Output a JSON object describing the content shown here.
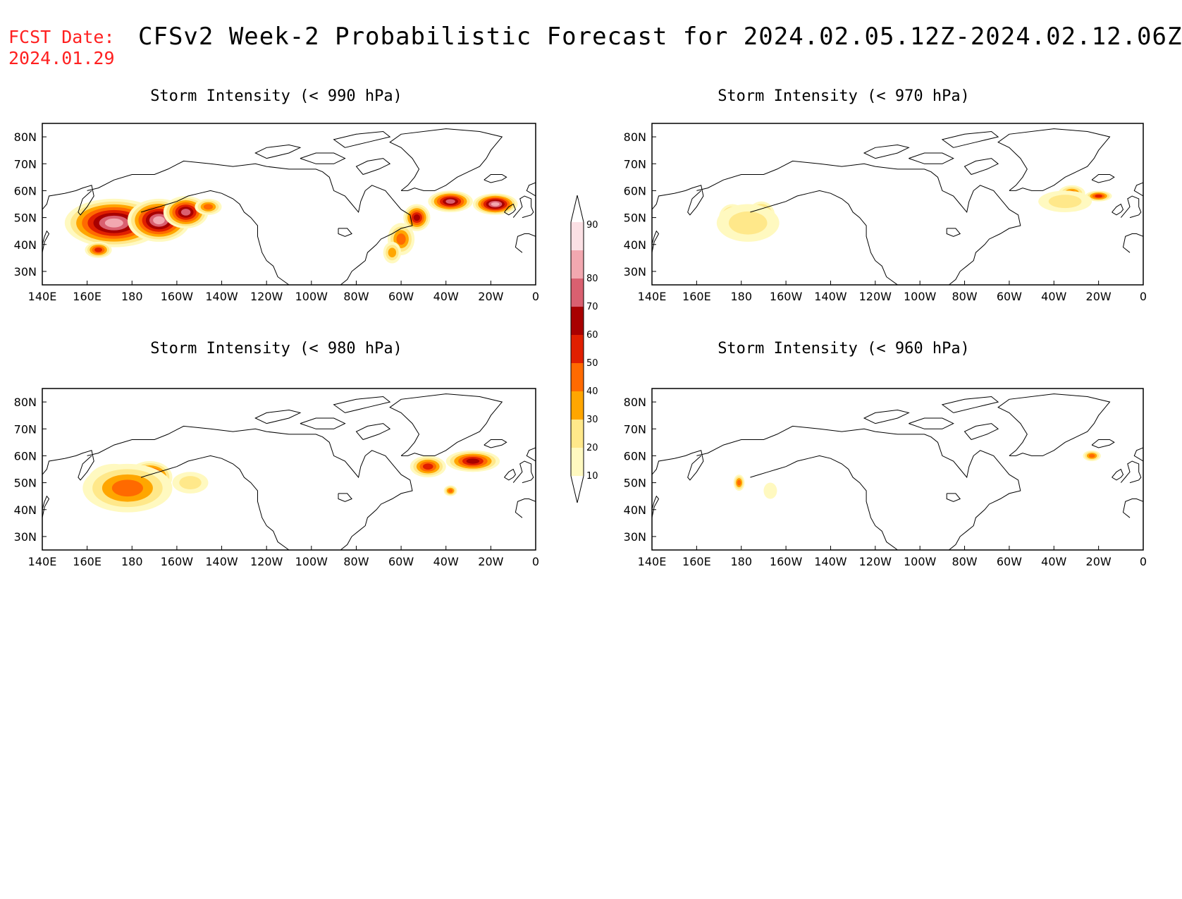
{
  "header": {
    "fcst_label": "FCST Date:",
    "fcst_date": "2024.01.29",
    "title": "CFSv2 Week-2 Probabilistic Forecast for 2024.02.05.12Z-2024.02.12.06Z"
  },
  "colors": {
    "fcst_text": "#ff2020",
    "scale": [
      "#fff9c0",
      "#ffe88a",
      "#ffa600",
      "#ff6a00",
      "#e01f00",
      "#a80000",
      "#d96070",
      "#f2a8b0",
      "#fbe0e4"
    ]
  },
  "panels": [
    {
      "id": "p990",
      "title": "Storm Intensity (< 990 hPa)",
      "blobs": [
        {
          "lon": 172,
          "lat": 48,
          "rlon": 22,
          "rlat": 9,
          "p": 88
        },
        {
          "lon": 192,
          "lat": 49,
          "rlon": 14,
          "rlat": 8,
          "p": 82
        },
        {
          "lon": 204,
          "lat": 52,
          "rlon": 10,
          "rlat": 6,
          "p": 72
        },
        {
          "lon": 214,
          "lat": 54,
          "rlon": 6,
          "rlat": 3,
          "p": 45
        },
        {
          "lon": 165,
          "lat": 38,
          "rlon": 6,
          "rlat": 3,
          "p": 55
        },
        {
          "lon": 300,
          "lat": 42,
          "rlon": 6,
          "rlat": 6,
          "p": 45
        },
        {
          "lon": 307,
          "lat": 50,
          "rlon": 6,
          "rlat": 5,
          "p": 68
        },
        {
          "lon": 322,
          "lat": 56,
          "rlon": 10,
          "rlat": 4,
          "p": 78
        },
        {
          "lon": 342,
          "lat": 55,
          "rlon": 10,
          "rlat": 4,
          "p": 82
        },
        {
          "lon": 296,
          "lat": 37,
          "rlon": 4,
          "rlat": 4,
          "p": 35
        }
      ]
    },
    {
      "id": "p970",
      "title": "Storm Intensity (< 970 hPa)",
      "blobs": [
        {
          "lon": 176,
          "lat": 50,
          "rlon": 6,
          "rlat": 5,
          "p": 52
        },
        {
          "lon": 189,
          "lat": 51,
          "rlon": 6,
          "rlat": 5,
          "p": 58
        },
        {
          "lon": 183,
          "lat": 48,
          "rlon": 14,
          "rlat": 7,
          "p": 25
        },
        {
          "lon": 328,
          "lat": 59,
          "rlon": 6,
          "rlat": 3,
          "p": 45
        },
        {
          "lon": 340,
          "lat": 58,
          "rlon": 6,
          "rlat": 2,
          "p": 55
        },
        {
          "lon": 325,
          "lat": 56,
          "rlon": 12,
          "rlat": 4,
          "p": 22
        }
      ]
    },
    {
      "id": "p980",
      "title": "Storm Intensity (< 980 hPa)",
      "blobs": [
        {
          "lon": 172,
          "lat": 50,
          "rlon": 12,
          "rlat": 7,
          "p": 78
        },
        {
          "lon": 188,
          "lat": 52,
          "rlon": 10,
          "rlat": 6,
          "p": 72
        },
        {
          "lon": 178,
          "lat": 48,
          "rlon": 20,
          "rlat": 9,
          "p": 48
        },
        {
          "lon": 206,
          "lat": 50,
          "rlon": 8,
          "rlat": 4,
          "p": 28
        },
        {
          "lon": 312,
          "lat": 56,
          "rlon": 8,
          "rlat": 4,
          "p": 55
        },
        {
          "lon": 332,
          "lat": 58,
          "rlon": 12,
          "rlat": 4,
          "p": 60
        },
        {
          "lon": 322,
          "lat": 47,
          "rlon": 3,
          "rlat": 2,
          "p": 45
        }
      ]
    },
    {
      "id": "p960",
      "title": "Storm Intensity (< 960 hPa)",
      "blobs": [
        {
          "lon": 179,
          "lat": 50,
          "rlon": 2.5,
          "rlat": 3,
          "p": 48
        },
        {
          "lon": 193,
          "lat": 47,
          "rlon": 3,
          "rlat": 3,
          "p": 18
        },
        {
          "lon": 337,
          "lat": 60,
          "rlon": 4,
          "rlat": 2,
          "p": 42
        }
      ]
    }
  ],
  "axes": {
    "lon_ticks": [
      "140E",
      "160E",
      "180",
      "160W",
      "140W",
      "120W",
      "100W",
      "80W",
      "60W",
      "40W",
      "20W",
      "0"
    ],
    "lat_ticks": [
      "30N",
      "40N",
      "50N",
      "60N",
      "70N",
      "80N"
    ],
    "lon_range": [
      140,
      360
    ],
    "lat_range": [
      25,
      85
    ]
  },
  "colorbar": {
    "ticks": [
      "10",
      "20",
      "30",
      "40",
      "50",
      "60",
      "70",
      "80",
      "90"
    ]
  }
}
